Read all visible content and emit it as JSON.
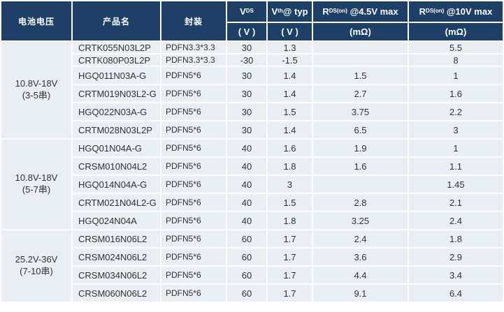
{
  "colors": {
    "header_bg": "#1e4066",
    "header_text": "#ffffff",
    "row_bg": "#e9edf4",
    "body_text": "#333333",
    "grid_line": "#ffffff"
  },
  "table": {
    "headers": {
      "battery_voltage": "电池电压",
      "product_name": "产品名",
      "package": "封装",
      "vds_main": "V",
      "vds_sub": "DS",
      "vth_main": "V",
      "vth_sub": "th",
      "vth_rest": "@ typ",
      "rds_main": "R",
      "rds_sub": "DS(on)",
      "rds45_rest": " @4.5V max",
      "rds10_rest": " @10V max",
      "unit_v": "( V )",
      "unit_mohm": "(mΩ)"
    },
    "groups": [
      {
        "label_line1": "10.8V-18V",
        "label_line2": "(3-5串)",
        "rows": [
          {
            "product": "CRTK055N03L2P",
            "package": "PDFN3.3*3.3",
            "vds": "30",
            "vth": "1.3",
            "rds45": "",
            "rds10": "5.5"
          },
          {
            "product": "CRTK080P03L2P",
            "package": "PDFN3.3*3.3",
            "vds": "-30",
            "vth": "-1.5",
            "rds45": "",
            "rds10": "8"
          },
          {
            "product": "HGQ011N03A-G",
            "package": "PDFN5*6",
            "vds": "30",
            "vth": "1.4",
            "rds45": "1.5",
            "rds10": "1"
          },
          {
            "product": "CRTM019N03L2-G",
            "package": "PDFN5*6",
            "vds": "30",
            "vth": "1.4",
            "rds45": "2.7",
            "rds10": "1.6"
          },
          {
            "product": "HGQ022N03A-G",
            "package": "PDFN5*6",
            "vds": "30",
            "vth": "1.5",
            "rds45": "3.75",
            "rds10": "2.2"
          },
          {
            "product": "CRTM028N03L2P",
            "package": "PDFN5*6",
            "vds": "30",
            "vth": "1.4",
            "rds45": "6.5",
            "rds10": "3"
          }
        ]
      },
      {
        "label_line1": "10.8V-18V",
        "label_line2": "(5-7串)",
        "rows": [
          {
            "product": "HGQ01N04A-G",
            "package": "PDFN5*6",
            "vds": "40",
            "vth": "1.6",
            "rds45": "1.9",
            "rds10": "1"
          },
          {
            "product": "CRSM010N04L2",
            "package": "PDFN5*6",
            "vds": "40",
            "vth": "1.8",
            "rds45": "1.6",
            "rds10": "1.1"
          },
          {
            "product": "HGQ014N04A-G",
            "package": "PDFN5*6",
            "vds": "40",
            "vth": "3",
            "rds45": "",
            "rds10": "1.45"
          },
          {
            "product": "CRTM021N04L2-G",
            "package": "PDFN5*6",
            "vds": "40",
            "vth": "1.5",
            "rds45": "2.8",
            "rds10": "2.1"
          },
          {
            "product": "HGQ024N04A",
            "package": "PDFN5*6",
            "vds": "40",
            "vth": "1.8",
            "rds45": "3.25",
            "rds10": "2.4"
          }
        ]
      },
      {
        "label_line1": "25.2V-36V",
        "label_line2": "(7-10串)",
        "rows": [
          {
            "product": "CRSM016N06L2",
            "package": "PDFN5*6",
            "vds": "60",
            "vth": "1.7",
            "rds45": "2.4",
            "rds10": "1.8"
          },
          {
            "product": "CRSM024N06L2",
            "package": "PDFN5*6",
            "vds": "60",
            "vth": "1.7",
            "rds45": "3.6",
            "rds10": "2.9"
          },
          {
            "product": "CRSM034N06L2",
            "package": "PDFN5*6",
            "vds": "60",
            "vth": "1.7",
            "rds45": "4.4",
            "rds10": "3.4"
          },
          {
            "product": "CRSM060N06L2",
            "package": "PDFN5*6",
            "vds": "60",
            "vth": "1.7",
            "rds45": "9.1",
            "rds10": "6.4"
          }
        ]
      }
    ]
  }
}
